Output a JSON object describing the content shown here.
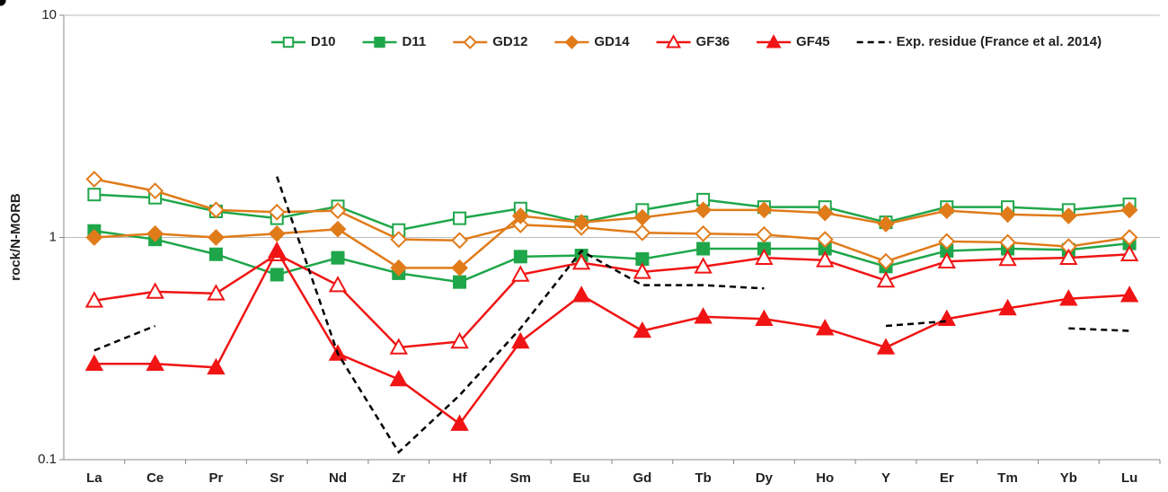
{
  "chart_data": {
    "type": "line",
    "y_label": "rock/N-MORB",
    "categories": [
      "La",
      "Ce",
      "Pr",
      "Sr",
      "Nd",
      "Zr",
      "Hf",
      "Sm",
      "Eu",
      "Gd",
      "Tb",
      "Dy",
      "Ho",
      "Y",
      "Er",
      "Tm",
      "Yb",
      "Lu"
    ],
    "ylim": [
      0.1,
      10
    ],
    "yticks": [
      0.1,
      1,
      10
    ],
    "log_scale": true,
    "grid": true,
    "legend": "top",
    "series": [
      {
        "name": "D10",
        "color": "#1fa64a",
        "marker": "square",
        "filled": false,
        "dashed": false,
        "values": [
          1.56,
          1.51,
          1.31,
          1.22,
          1.38,
          1.08,
          1.22,
          1.35,
          1.17,
          1.33,
          1.48,
          1.37,
          1.37,
          1.17,
          1.37,
          1.37,
          1.33,
          1.41
        ]
      },
      {
        "name": "D11",
        "color": "#1fa64a",
        "marker": "square",
        "filled": true,
        "dashed": false,
        "values": [
          1.07,
          0.98,
          0.84,
          0.68,
          0.81,
          0.69,
          0.63,
          0.82,
          0.83,
          0.8,
          0.89,
          0.89,
          0.89,
          0.74,
          0.87,
          0.89,
          0.88,
          0.94
        ]
      },
      {
        "name": "GD12",
        "color": "#e07b1a",
        "marker": "diamond",
        "filled": false,
        "dashed": false,
        "values": [
          1.83,
          1.62,
          1.33,
          1.3,
          1.32,
          0.98,
          0.97,
          1.14,
          1.11,
          1.05,
          1.04,
          1.03,
          0.98,
          0.78,
          0.96,
          0.95,
          0.91,
          1.0
        ]
      },
      {
        "name": "GD14",
        "color": "#e07b1a",
        "marker": "diamond",
        "filled": true,
        "dashed": false,
        "values": [
          1.0,
          1.04,
          1.0,
          1.04,
          1.09,
          0.73,
          0.73,
          1.25,
          1.17,
          1.23,
          1.33,
          1.33,
          1.29,
          1.15,
          1.32,
          1.27,
          1.25,
          1.33
        ]
      },
      {
        "name": "GF36",
        "color": "#f01414",
        "marker": "triangle",
        "filled": false,
        "dashed": false,
        "values": [
          0.52,
          0.57,
          0.56,
          0.84,
          0.61,
          0.32,
          0.34,
          0.68,
          0.77,
          0.7,
          0.74,
          0.81,
          0.79,
          0.64,
          0.78,
          0.8,
          0.81,
          0.84
        ]
      },
      {
        "name": "GF45",
        "color": "#f01414",
        "marker": "triangle",
        "filled": true,
        "dashed": false,
        "values": [
          0.27,
          0.27,
          0.26,
          0.87,
          0.3,
          0.23,
          0.145,
          0.34,
          0.55,
          0.38,
          0.44,
          0.43,
          0.39,
          0.32,
          0.43,
          0.48,
          0.53,
          0.55
        ]
      },
      {
        "name": "Exp. residue (France et al. 2014)",
        "color": "#000000",
        "marker": "circle",
        "filled": true,
        "dashed": true,
        "values": [
          0.31,
          0.4,
          null,
          1.88,
          0.3,
          0.108,
          0.195,
          0.39,
          0.87,
          0.61,
          0.61,
          0.59,
          null,
          0.4,
          0.42,
          null,
          0.39,
          0.38
        ]
      }
    ]
  }
}
